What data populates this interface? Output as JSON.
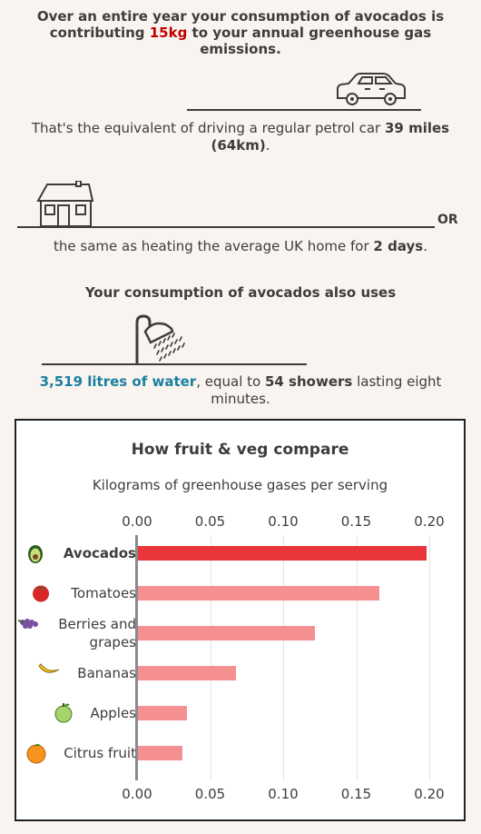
{
  "headline": {
    "part1": "Over an entire year your consumption of avocados is contributing ",
    "amount": "15kg",
    "part2": " to your annual greenhouse gas emissions."
  },
  "car": {
    "part1": "That's the equivalent of driving a regular petrol car ",
    "amount": "39 miles (64km)",
    "part2": "."
  },
  "or_label": "OR",
  "home": {
    "part1": "the same as heating the average UK home for ",
    "amount": "2 days",
    "part2": "."
  },
  "water_heading": "Your consumption of avocados also uses",
  "water": {
    "amount": "3,519 litres of water",
    "part1": ", equal to ",
    "showers": "54 showers",
    "part2": " lasting eight minutes."
  },
  "icons": [
    "car-icon",
    "house-icon",
    "shower-icon",
    "avocado-icon",
    "tomato-icon",
    "grapes-icon",
    "banana-icon",
    "apple-icon",
    "orange-icon"
  ],
  "colors": {
    "accent_red": "#c00000",
    "water_blue": "#1a7fa0",
    "highlight_bar": "#e8363a",
    "other_bar": "#f59090"
  },
  "chart_data": {
    "type": "bar",
    "orientation": "horizontal",
    "title": "How fruit & veg compare",
    "subtitle": "Kilograms of greenhouse gases per serving",
    "categories": [
      "Avocados",
      "Tomatoes",
      "Berries and grapes",
      "Bananas",
      "Apples",
      "Citrus fruit"
    ],
    "values": [
      0.198,
      0.166,
      0.122,
      0.068,
      0.034,
      0.031
    ],
    "highlight": "Avocados",
    "xlim": [
      0,
      0.2
    ],
    "ticks": [
      "0.00",
      "0.05",
      "0.10",
      "0.15",
      "0.20"
    ],
    "tick_values": [
      0,
      0.05,
      0.1,
      0.15,
      0.2
    ],
    "grid": true
  }
}
